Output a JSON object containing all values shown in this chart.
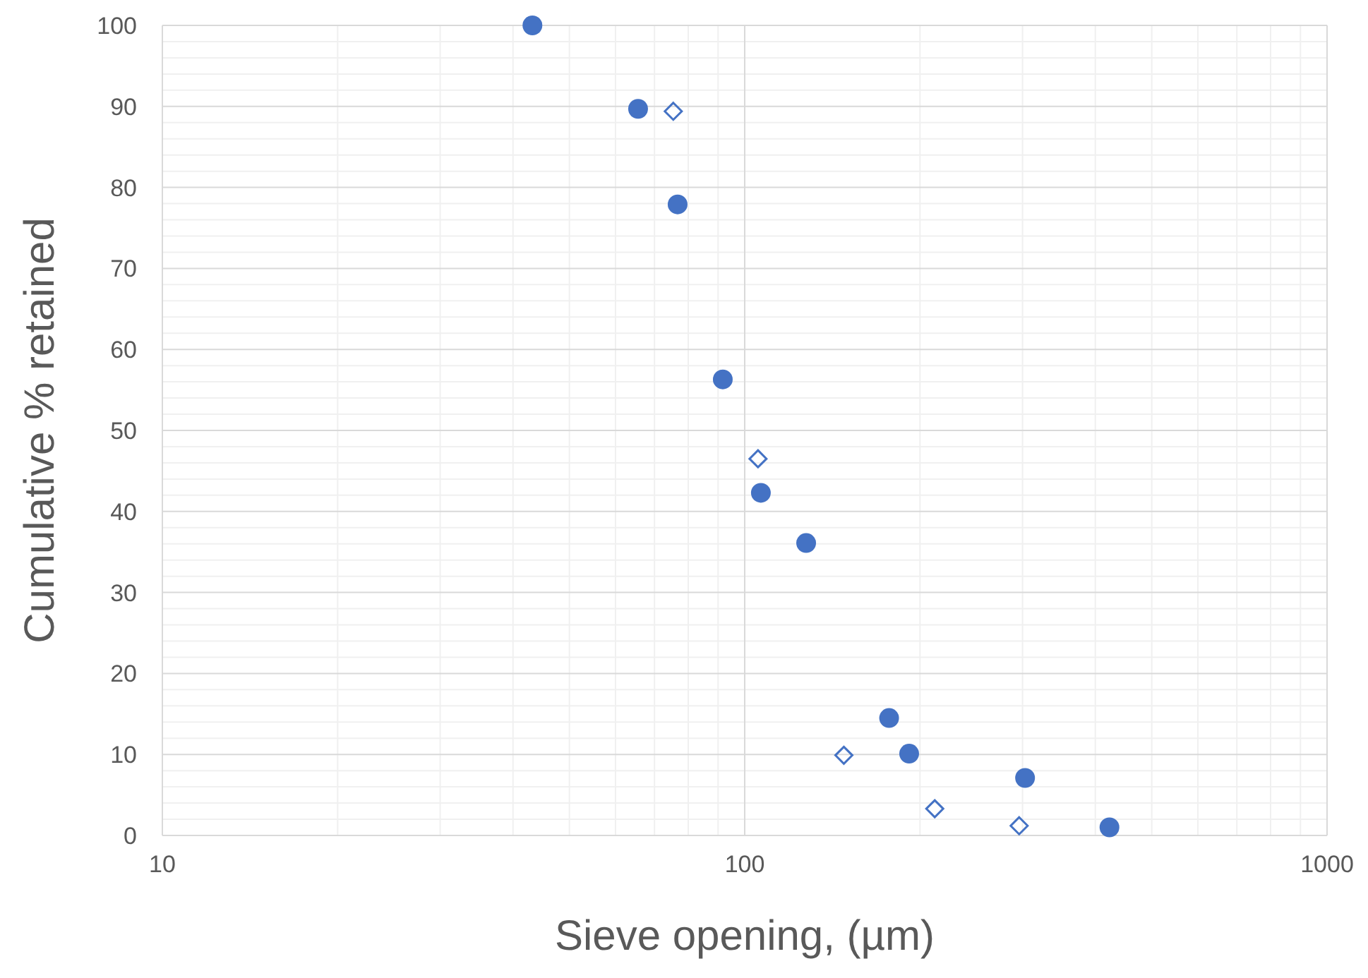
{
  "chart_data": {
    "type": "scatter",
    "xlabel": "Sieve opening, (µm)",
    "ylabel": "Cumulative % retained",
    "log": "x",
    "grid": true,
    "xlim": [
      10,
      1000
    ],
    "xticks": [
      10,
      100,
      1000
    ],
    "ylim": [
      0,
      100
    ],
    "yticks": [
      0,
      10,
      20,
      30,
      40,
      50,
      60,
      70,
      80,
      90,
      100
    ],
    "series": [
      {
        "color": "#4472c4",
        "marker": "circle",
        "x": [
          43.2,
          65.6,
          76.7,
          91.7,
          106.6,
          127.5,
          177,
          191.6,
          303,
          423
        ],
        "values": [
          100,
          89.7,
          77.9,
          56.3,
          42.3,
          36.1,
          14.5,
          10.1,
          7.1,
          1.0
        ]
      },
      {
        "color": "#4472c4",
        "marker": "diamond",
        "x": [
          75.4,
          105.4,
          148,
          212,
          296
        ],
        "values": [
          89.4,
          46.5,
          9.9,
          3.3,
          1.2
        ]
      }
    ]
  }
}
